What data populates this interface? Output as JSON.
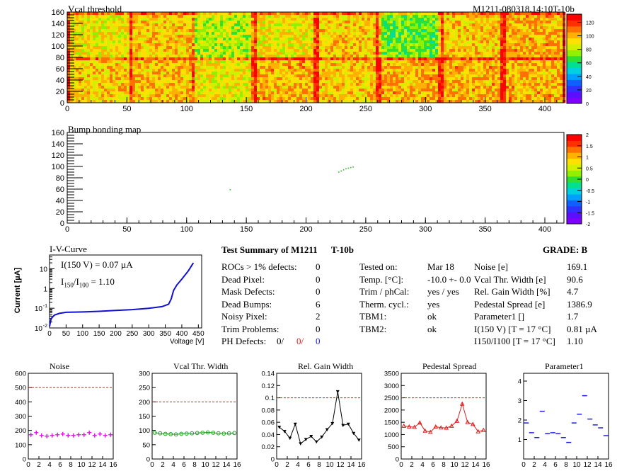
{
  "header": {
    "plot_title": "Vcal threshold",
    "module_id": "M1211-080318.14:10T-10b"
  },
  "vcal_map": {
    "title": "Vcal threshold",
    "x_ticks": [
      "0",
      "50",
      "100",
      "150",
      "200",
      "250",
      "300",
      "350",
      "400"
    ],
    "y_ticks": [
      "0",
      "20",
      "40",
      "60",
      "80",
      "100",
      "120",
      "140",
      "160"
    ],
    "z_ticks": [
      "0",
      "20",
      "40",
      "60",
      "80",
      "100",
      "120"
    ],
    "xlim": [
      0,
      416
    ],
    "ylim": [
      0,
      160
    ],
    "zlim": [
      0,
      132
    ]
  },
  "bump_map": {
    "title": "Bump bonding map",
    "x_ticks": [
      "0",
      "50",
      "100",
      "150",
      "200",
      "250",
      "300",
      "350",
      "400"
    ],
    "y_ticks": [
      "0",
      "20",
      "40",
      "60",
      "80",
      "100",
      "120",
      "140",
      "160"
    ],
    "z_ticks": [
      "2",
      "1.5",
      "1",
      "0.5",
      "0",
      "-0.5",
      "-1",
      "-1.5",
      "-2"
    ],
    "xlim": [
      0,
      416
    ],
    "ylim": [
      0,
      160
    ],
    "hits": [
      [
        136,
        60
      ],
      [
        227,
        91
      ],
      [
        229,
        93
      ],
      [
        231,
        95
      ],
      [
        233,
        97
      ],
      [
        235,
        98
      ],
      [
        237,
        99
      ],
      [
        239,
        100
      ]
    ]
  },
  "iv": {
    "title": "I-V-Curve",
    "ylabel": "Current [µA]",
    "xlabel": "Voltage [V]",
    "annot1": "I(150 V) = 0.07 µA",
    "annot2_main": "I",
    "annot2_sub1": "150",
    "annot2_mid": "/I",
    "annot2_sub2": "100",
    "annot2_val": "=  1.10",
    "x_ticks": [
      "0",
      "50",
      "100",
      "150",
      "200",
      "250",
      "300",
      "350",
      "400",
      "450"
    ],
    "y_tick_labels": [
      "10",
      "10",
      "1",
      "10",
      "10"
    ],
    "y_tick_exps": [
      "",
      "",
      "",
      "-1",
      "-2"
    ],
    "points": [
      [
        0,
        0.012
      ],
      [
        5,
        0.03
      ],
      [
        15,
        0.045
      ],
      [
        30,
        0.055
      ],
      [
        50,
        0.062
      ],
      [
        100,
        0.065
      ],
      [
        150,
        0.07
      ],
      [
        200,
        0.077
      ],
      [
        250,
        0.085
      ],
      [
        300,
        0.1
      ],
      [
        340,
        0.12
      ],
      [
        360,
        0.16
      ],
      [
        368,
        0.3
      ],
      [
        375,
        0.8
      ],
      [
        385,
        1.5
      ],
      [
        400,
        3
      ],
      [
        420,
        8
      ],
      [
        435,
        20
      ]
    ]
  },
  "summary": {
    "title": "Test Summary of M1211",
    "config": "T-10b",
    "grade": "GRADE:  B",
    "left_labels": [
      "ROCs > 1% defects:",
      "Dead Pixel:",
      "Mask Defects:",
      "Dead Bumps:",
      "Noisy Pixel:",
      "Trim Problems:",
      "PH Defects:"
    ],
    "left_values": [
      "0",
      "0",
      "0",
      "6",
      "2",
      "0"
    ],
    "ph_vals": [
      "0/",
      "0/",
      "0"
    ],
    "mid_labels": [
      "Tested on:",
      "Temp. [°C]:",
      "Trim / phCal:",
      "Therm. cycl.:",
      "TBM1:",
      "TBM2:"
    ],
    "mid_values": [
      "Mar 18",
      "-10.0 +- 0.0",
      "yes / yes",
      "yes",
      "ok",
      "ok"
    ],
    "right_labels": [
      "Noise [e]",
      "Vcal Thr. Width [e]",
      "Rel. Gain Width [%]",
      "Pedestal Spread [e]",
      "Parameter1 []",
      "I(150 V) [T = 17 °C]"
    ],
    "right_values": [
      "169.1",
      "90.6",
      "4.7",
      "1386.9",
      "1.7",
      "0.81 µA"
    ],
    "ratio_label": "I150/I100  [T = 17 °C]",
    "ratio_value": "1.10"
  },
  "colors": {
    "noise": "#e020e0",
    "vcal_width": "#20a020",
    "gain": "#000000",
    "pedestal": "#e02020",
    "param1": "#2020e0",
    "iv_line": "#1010d0",
    "ref_line": "#cc2020",
    "ph_red": "#e02020",
    "ph_blue": "#2020e0"
  },
  "chart_data": [
    {
      "type": "scatter",
      "title": "Noise",
      "x": [
        0,
        1,
        2,
        3,
        4,
        5,
        6,
        7,
        8,
        9,
        10,
        11,
        12,
        13,
        14,
        15
      ],
      "values": [
        170,
        185,
        165,
        160,
        165,
        170,
        175,
        165,
        165,
        170,
        170,
        185,
        165,
        175,
        165,
        170
      ],
      "ylim": [
        0,
        600
      ],
      "ref": 500,
      "x_ticks": [
        "0",
        "2",
        "4",
        "6",
        "8",
        "10",
        "12",
        "14",
        "16"
      ],
      "y_ticks": [
        "0",
        "100",
        "200",
        "300",
        "400",
        "500",
        "600"
      ]
    },
    {
      "type": "line",
      "title": "Vcal Thr. Width",
      "x": [
        0,
        1,
        2,
        3,
        4,
        5,
        6,
        7,
        8,
        9,
        10,
        11,
        12,
        13,
        14,
        15
      ],
      "values": [
        92,
        90,
        88,
        87,
        86,
        88,
        89,
        90,
        91,
        92,
        93,
        92,
        90,
        89,
        90,
        91
      ],
      "ylim": [
        0,
        300
      ],
      "ref": 200,
      "x_ticks": [
        "0",
        "2",
        "4",
        "6",
        "8",
        "10",
        "12",
        "14",
        "16"
      ],
      "y_ticks": [
        "0",
        "50",
        "100",
        "150",
        "200",
        "250",
        "300"
      ]
    },
    {
      "type": "line",
      "title": "Rel. Gain Width",
      "x": [
        0,
        1,
        2,
        3,
        4,
        5,
        6,
        7,
        8,
        9,
        10,
        11,
        12,
        13,
        14,
        15
      ],
      "values": [
        0.052,
        0.045,
        0.034,
        0.057,
        0.025,
        0.032,
        0.037,
        0.028,
        0.036,
        0.048,
        0.058,
        0.11,
        0.055,
        0.057,
        0.042,
        0.031
      ],
      "ylim": [
        0,
        0.14
      ],
      "ref": 0.1,
      "x_ticks": [
        "0",
        "2",
        "4",
        "6",
        "8",
        "10",
        "12",
        "14",
        "16"
      ],
      "y_ticks": [
        "0",
        "0.02",
        "0.04",
        "0.06",
        "0.08",
        "0.1",
        "0.12",
        "0.14"
      ]
    },
    {
      "type": "line",
      "title": "Pedestal Spread",
      "x": [
        0,
        1,
        2,
        3,
        4,
        5,
        6,
        7,
        8,
        9,
        10,
        11,
        12,
        13,
        14,
        15
      ],
      "values": [
        1350,
        1320,
        1300,
        1480,
        1150,
        1100,
        1320,
        1280,
        1270,
        1350,
        1550,
        2250,
        1500,
        1420,
        1120,
        1180
      ],
      "ylim": [
        0,
        3500
      ],
      "ref": 2500,
      "x_ticks": [
        "0",
        "2",
        "4",
        "6",
        "8",
        "10",
        "12",
        "14",
        "16"
      ],
      "y_ticks": [
        "0",
        "500",
        "1000",
        "1500",
        "2000",
        "2500",
        "3000",
        "3500"
      ]
    },
    {
      "type": "scatter",
      "title": "Parameter1",
      "x": [
        0,
        1,
        2,
        3,
        4,
        5,
        6,
        7,
        8,
        9,
        10,
        11,
        12,
        13,
        14,
        15
      ],
      "values": [
        1.85,
        1.35,
        1.1,
        2.45,
        1.3,
        1.35,
        1.3,
        1.1,
        0.85,
        1.85,
        2.3,
        3.25,
        2.05,
        1.75,
        1.6,
        1.2
      ],
      "ylim": [
        0,
        4.4
      ],
      "x_ticks": [
        "0",
        "2",
        "4",
        "6",
        "8",
        "10",
        "12",
        "14",
        "16"
      ],
      "y_ticks": [
        "1",
        "2",
        "3",
        "4"
      ],
      "y_tick_values": [
        1,
        2,
        3,
        4
      ]
    }
  ]
}
